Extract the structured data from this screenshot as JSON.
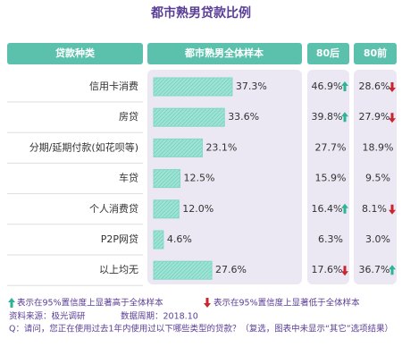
{
  "chart_data": {
    "type": "bar",
    "title": "都市熟男贷款比例",
    "category_header": "贷款种类",
    "categories": [
      "信用卡消费",
      "房贷",
      "分期/延期付款(如花呗等)",
      "车贷",
      "个人消费贷",
      "P2P网贷",
      "以上均无"
    ],
    "xlim": [
      0,
      70
    ],
    "series": [
      {
        "name": "都市熟男全体样本",
        "color": "#7fd8c6",
        "values": [
          37.3,
          33.6,
          23.1,
          12.5,
          12.0,
          4.6,
          27.6
        ],
        "value_labels": [
          "37.3%",
          "33.6%",
          "23.1%",
          "12.5%",
          "12.0%",
          "4.6%",
          "27.6%"
        ]
      },
      {
        "name": "80后",
        "values": [
          46.9,
          39.8,
          27.7,
          15.9,
          16.4,
          6.3,
          17.6
        ],
        "value_labels": [
          "46.9%",
          "39.8%",
          "27.7%",
          "15.9%",
          "16.4%",
          "6.3%",
          "17.6%"
        ],
        "significance": [
          "up",
          "up",
          null,
          null,
          "up",
          null,
          "down"
        ]
      },
      {
        "name": "80前",
        "values": [
          28.6,
          27.9,
          18.9,
          9.5,
          8.1,
          3.0,
          36.7
        ],
        "value_labels": [
          "28.6%",
          "27.9%",
          "18.9%",
          "9.5%",
          "8.1%",
          "3.0%",
          "36.7%"
        ],
        "significance": [
          "down",
          "down",
          null,
          null,
          "down",
          null,
          "up"
        ]
      }
    ],
    "up_color": "#2bb596",
    "down_color": "#c8252c"
  },
  "legend_notes": [
    "表示在95%置信度上显著高于全体样本",
    "表示在95%置信度上显著低于全体样本"
  ],
  "notes": {
    "source": "资料来源：极光调研",
    "period": "数据周期：2018.10",
    "question": "Q：请问，您正在使用过去1年内使用过以下哪些类型的贷款？（复选，图表中未显示“其它”选项结果）"
  }
}
